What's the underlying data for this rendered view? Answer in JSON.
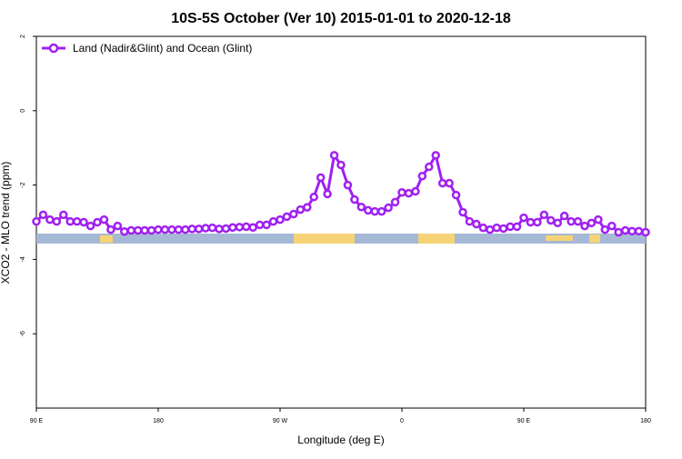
{
  "chart_data": {
    "type": "line",
    "title": "10S-5S October (Ver 10)   2015-01-01 to 2020-12-18",
    "x_label": "Longitude (deg E)",
    "y_label": "XCO2 - MLO trend (ppm)",
    "x": [
      90,
      95,
      100,
      105,
      110,
      115,
      120,
      125,
      130,
      135,
      140,
      145,
      150,
      155,
      160,
      165,
      170,
      175,
      180,
      185,
      190,
      195,
      200,
      205,
      210,
      215,
      220,
      225,
      230,
      235,
      240,
      245,
      250,
      255,
      260,
      265,
      270,
      275,
      280,
      285,
      290,
      295,
      300,
      305,
      310,
      315,
      320,
      325,
      330,
      335,
      340,
      345,
      350,
      355,
      360,
      365,
      370,
      375,
      380,
      385,
      390,
      395,
      400,
      405,
      410,
      415,
      420,
      425,
      430,
      435,
      440,
      445,
      450,
      455,
      460,
      465,
      470,
      475,
      480,
      485,
      490,
      495,
      500,
      505,
      510,
      515,
      520,
      525,
      530,
      535,
      540
    ],
    "series": [
      {
        "name": "Land (Nadir&Glint) and Ocean (Glint)",
        "color": "#a020f0",
        "values": [
          -2.98,
          -2.8,
          -2.93,
          -2.98,
          -2.8,
          -2.98,
          -2.98,
          -3.0,
          -3.1,
          -3.0,
          -2.93,
          -3.2,
          -3.1,
          -3.25,
          -3.22,
          -3.22,
          -3.22,
          -3.22,
          -3.2,
          -3.2,
          -3.2,
          -3.2,
          -3.2,
          -3.18,
          -3.18,
          -3.16,
          -3.15,
          -3.18,
          -3.17,
          -3.14,
          -3.13,
          -3.12,
          -3.14,
          -3.07,
          -3.07,
          -2.98,
          -2.93,
          -2.85,
          -2.78,
          -2.66,
          -2.6,
          -2.32,
          -1.8,
          -2.24,
          -1.2,
          -1.46,
          -2.0,
          -2.39,
          -2.59,
          -2.68,
          -2.71,
          -2.71,
          -2.61,
          -2.46,
          -2.2,
          -2.22,
          -2.17,
          -1.76,
          -1.51,
          -1.2,
          -1.95,
          -1.95,
          -2.27,
          -2.73,
          -2.98,
          -3.05,
          -3.15,
          -3.2,
          -3.15,
          -3.17,
          -3.12,
          -3.12,
          -2.88,
          -3.0,
          -3.0,
          -2.8,
          -2.95,
          -3.02,
          -2.83,
          -2.98,
          -2.98,
          -3.1,
          -3.02,
          -2.93,
          -3.2,
          -3.1,
          -3.27,
          -3.22,
          -3.24,
          -3.24,
          -3.27
        ]
      }
    ],
    "xlim": [
      90,
      540
    ],
    "xticks": [
      {
        "value": 90,
        "label": "90 E"
      },
      180,
      {
        "value": 270,
        "label": "90 W"
      },
      {
        "value": 360,
        "label": "0"
      },
      {
        "value": 450,
        "label": "90 E"
      },
      {
        "value": 540,
        "label": "180"
      }
    ],
    "ylim": [
      -8,
      2
    ],
    "yticks": [
      -6,
      -4,
      -2,
      0,
      2
    ],
    "legend": "top-left"
  }
}
